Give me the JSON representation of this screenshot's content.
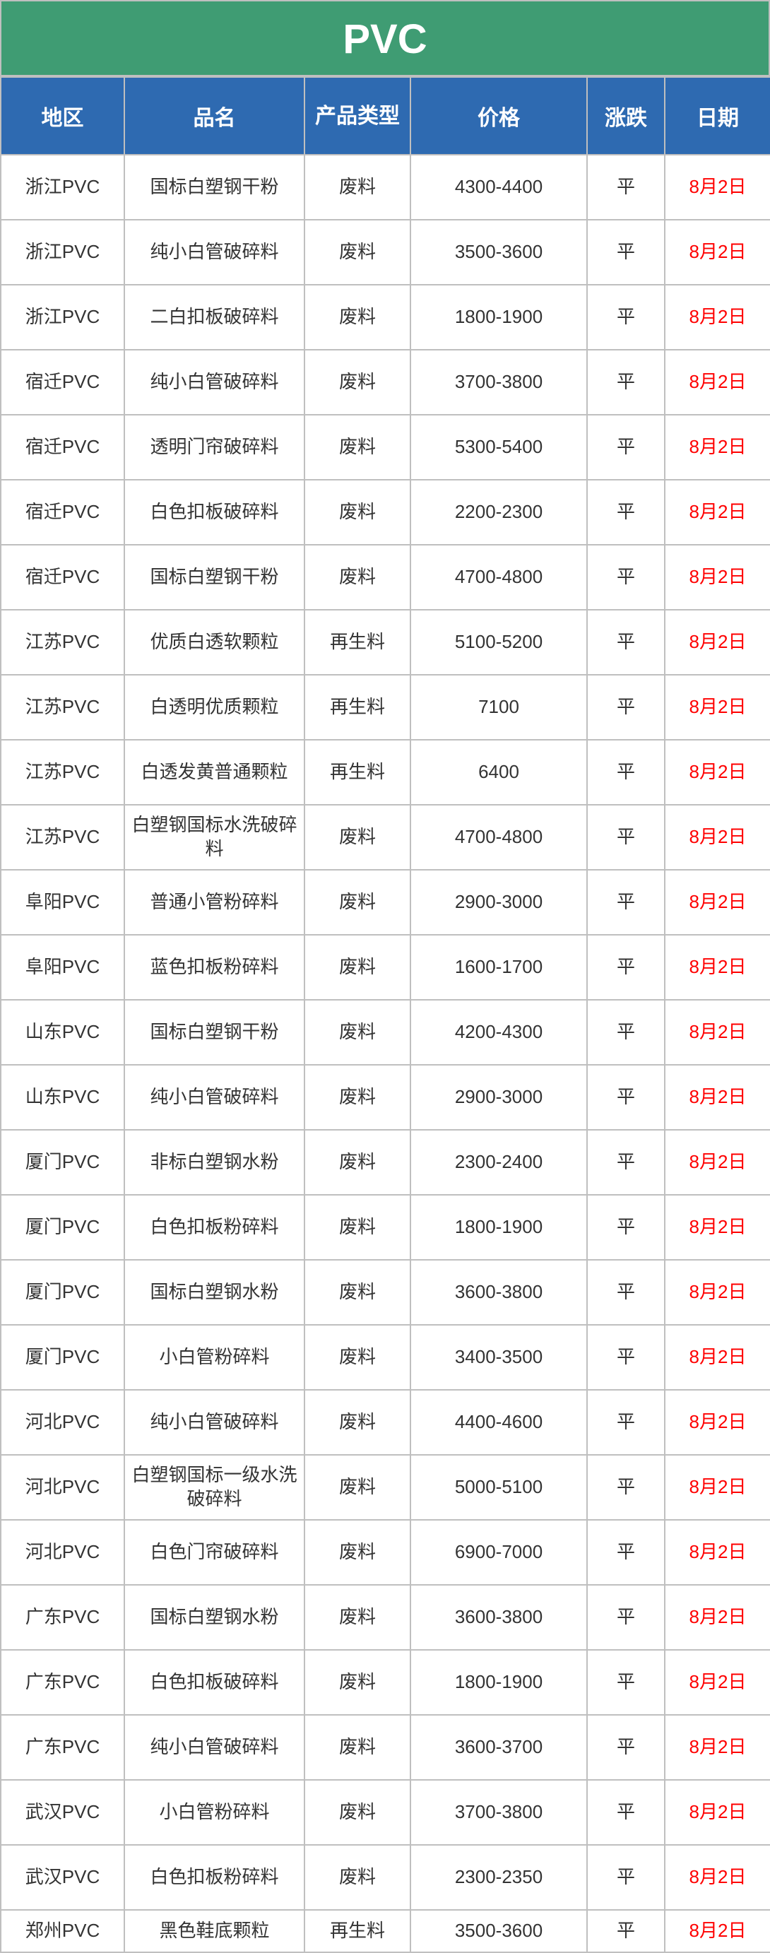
{
  "title": "PVC",
  "colors": {
    "title_bg": "#3f9c73",
    "header_bg": "#2e6ab1",
    "header_text": "#ffffff",
    "cell_text": "#333333",
    "date_text": "#ff0000",
    "border": "#bfbfbf"
  },
  "columns": [
    {
      "key": "region",
      "label": "地区"
    },
    {
      "key": "name",
      "label": "品名"
    },
    {
      "key": "type",
      "label": "产品类型"
    },
    {
      "key": "price",
      "label": "价格"
    },
    {
      "key": "change",
      "label": "涨跌"
    },
    {
      "key": "date",
      "label": "日期"
    }
  ],
  "rows": [
    {
      "region": "浙江PVC",
      "name": "国标白塑钢干粉",
      "type": "废料",
      "price": "4300-4400",
      "change": "平",
      "date": "8月2日"
    },
    {
      "region": "浙江PVC",
      "name": "纯小白管破碎料",
      "type": "废料",
      "price": "3500-3600",
      "change": "平",
      "date": "8月2日"
    },
    {
      "region": "浙江PVC",
      "name": "二白扣板破碎料",
      "type": "废料",
      "price": "1800-1900",
      "change": "平",
      "date": "8月2日"
    },
    {
      "region": "宿迁PVC",
      "name": "纯小白管破碎料",
      "type": "废料",
      "price": "3700-3800",
      "change": "平",
      "date": "8月2日"
    },
    {
      "region": "宿迁PVC",
      "name": "透明门帘破碎料",
      "type": "废料",
      "price": "5300-5400",
      "change": "平",
      "date": "8月2日"
    },
    {
      "region": "宿迁PVC",
      "name": "白色扣板破碎料",
      "type": "废料",
      "price": "2200-2300",
      "change": "平",
      "date": "8月2日"
    },
    {
      "region": "宿迁PVC",
      "name": "国标白塑钢干粉",
      "type": "废料",
      "price": "4700-4800",
      "change": "平",
      "date": "8月2日"
    },
    {
      "region": "江苏PVC",
      "name": "优质白透软颗粒",
      "type": "再生料",
      "price": "5100-5200",
      "change": "平",
      "date": "8月2日"
    },
    {
      "region": "江苏PVC",
      "name": "白透明优质颗粒",
      "type": "再生料",
      "price": "7100",
      "change": "平",
      "date": "8月2日"
    },
    {
      "region": "江苏PVC",
      "name": "白透发黄普通颗粒",
      "type": "再生料",
      "price": "6400",
      "change": "平",
      "date": "8月2日"
    },
    {
      "region": "江苏PVC",
      "name": "白塑钢国标水洗破碎料",
      "type": "废料",
      "price": "4700-4800",
      "change": "平",
      "date": "8月2日"
    },
    {
      "region": "阜阳PVC",
      "name": "普通小管粉碎料",
      "type": "废料",
      "price": "2900-3000",
      "change": "平",
      "date": "8月2日"
    },
    {
      "region": "阜阳PVC",
      "name": "蓝色扣板粉碎料",
      "type": "废料",
      "price": "1600-1700",
      "change": "平",
      "date": "8月2日"
    },
    {
      "region": "山东PVC",
      "name": "国标白塑钢干粉",
      "type": "废料",
      "price": "4200-4300",
      "change": "平",
      "date": "8月2日"
    },
    {
      "region": "山东PVC",
      "name": "纯小白管破碎料",
      "type": "废料",
      "price": "2900-3000",
      "change": "平",
      "date": "8月2日"
    },
    {
      "region": "厦门PVC",
      "name": "非标白塑钢水粉",
      "type": "废料",
      "price": "2300-2400",
      "change": "平",
      "date": "8月2日"
    },
    {
      "region": "厦门PVC",
      "name": "白色扣板粉碎料",
      "type": "废料",
      "price": "1800-1900",
      "change": "平",
      "date": "8月2日"
    },
    {
      "region": "厦门PVC",
      "name": "国标白塑钢水粉",
      "type": "废料",
      "price": "3600-3800",
      "change": "平",
      "date": "8月2日"
    },
    {
      "region": "厦门PVC",
      "name": "小白管粉碎料",
      "type": "废料",
      "price": "3400-3500",
      "change": "平",
      "date": "8月2日"
    },
    {
      "region": "河北PVC",
      "name": "纯小白管破碎料",
      "type": "废料",
      "price": "4400-4600",
      "change": "平",
      "date": "8月2日"
    },
    {
      "region": "河北PVC",
      "name": "白塑钢国标一级水洗破碎料",
      "type": "废料",
      "price": "5000-5100",
      "change": "平",
      "date": "8月2日"
    },
    {
      "region": "河北PVC",
      "name": "白色门帘破碎料",
      "type": "废料",
      "price": "6900-7000",
      "change": "平",
      "date": "8月2日"
    },
    {
      "region": "广东PVC",
      "name": "国标白塑钢水粉",
      "type": "废料",
      "price": "3600-3800",
      "change": "平",
      "date": "8月2日"
    },
    {
      "region": "广东PVC",
      "name": "白色扣板破碎料",
      "type": "废料",
      "price": "1800-1900",
      "change": "平",
      "date": "8月2日"
    },
    {
      "region": "广东PVC",
      "name": "纯小白管破碎料",
      "type": "废料",
      "price": "3600-3700",
      "change": "平",
      "date": "8月2日"
    },
    {
      "region": "武汉PVC",
      "name": "小白管粉碎料",
      "type": "废料",
      "price": "3700-3800",
      "change": "平",
      "date": "8月2日"
    },
    {
      "region": "武汉PVC",
      "name": "白色扣板粉碎料",
      "type": "废料",
      "price": "2300-2350",
      "change": "平",
      "date": "8月2日"
    },
    {
      "region": "郑州PVC",
      "name": "黑色鞋底颗粒",
      "type": "再生料",
      "price": "3500-3600",
      "change": "平",
      "date": "8月2日"
    }
  ]
}
